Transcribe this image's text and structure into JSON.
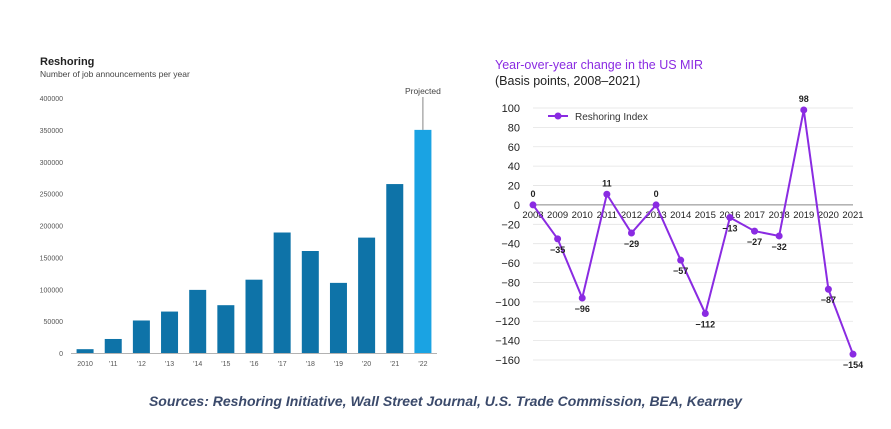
{
  "source_note": "Sources: Reshoring Initiative, Wall Street Journal, U.S. Trade Commission, BEA, Kearney",
  "colors": {
    "bar": "#0e73a8",
    "bar_projected": "#1aa3e3",
    "line": "#8a2be2",
    "left_title": "#222222",
    "right_title": "#8a2be2",
    "grid": "#e3e3e3"
  },
  "chart_data": [
    {
      "type": "bar",
      "title": "Reshoring",
      "subtitle": "Number of job announcements per year",
      "categories": [
        "2010",
        "'11",
        "'12",
        "'13",
        "'14",
        "'15",
        "'16",
        "'17",
        "'18",
        "'19",
        "'20",
        "'21",
        "'22"
      ],
      "values": [
        6000,
        22000,
        51000,
        65000,
        99000,
        75000,
        115000,
        189000,
        160000,
        110000,
        181000,
        265000,
        350000
      ],
      "projected": [
        false,
        false,
        false,
        false,
        false,
        false,
        false,
        false,
        false,
        false,
        false,
        false,
        true
      ],
      "annotation": "Projected",
      "ylim": [
        0,
        400000
      ],
      "yticks": [
        "400000",
        "350000",
        "300000",
        "250000",
        "200000",
        "150000",
        "100000",
        "50000",
        "0"
      ],
      "grid": false
    },
    {
      "type": "line",
      "title": "Year-over-year change in the US MIR",
      "subtitle": "(Basis points, 2008–2021)",
      "x": [
        "2008",
        "2009",
        "2010",
        "2011",
        "2012",
        "2013",
        "2014",
        "2015",
        "2016",
        "2017",
        "2018",
        "2019",
        "2020",
        "2021"
      ],
      "series": [
        {
          "name": "Reshoring Index",
          "values": [
            0,
            -35,
            -96,
            11,
            -29,
            0,
            -57,
            -112,
            -13,
            -27,
            -32,
            98,
            -87,
            -154
          ]
        }
      ],
      "data_labels": [
        "0",
        "−35",
        "−96",
        "11",
        "−29",
        "0",
        "−57",
        "−112",
        "−13",
        "−27",
        "−32",
        "98",
        "−87",
        "−154"
      ],
      "ylim": [
        -160,
        100
      ],
      "yticks": [
        "100",
        "80",
        "60",
        "40",
        "20",
        "0",
        "−20",
        "−40",
        "−60",
        "−80",
        "−100",
        "−120",
        "−140",
        "−160"
      ],
      "legend": "top-left",
      "grid": true
    }
  ]
}
